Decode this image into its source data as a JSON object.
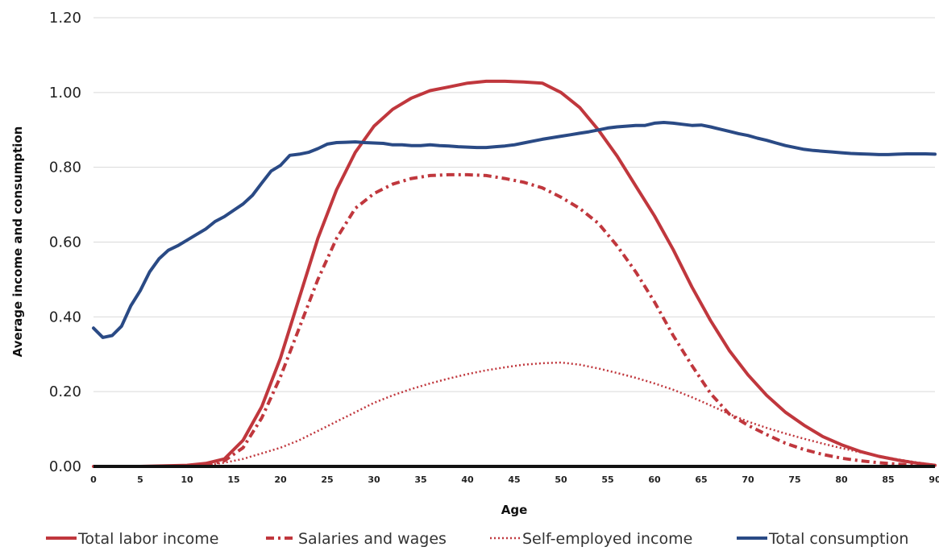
{
  "chart_data": {
    "type": "line",
    "xlabel": "Age",
    "ylabel": "Average income and consumption",
    "xlim": [
      0,
      90
    ],
    "ylim": [
      0,
      1.2
    ],
    "x_ticks": [
      "0",
      "5",
      "10",
      "15",
      "20",
      "25",
      "30",
      "35",
      "40",
      "45",
      "50",
      "55",
      "60",
      "65",
      "70",
      "75",
      "80",
      "85",
      "90"
    ],
    "y_ticks": [
      "0.00",
      "0.20",
      "0.40",
      "0.60",
      "0.80",
      "1.00",
      "1.20"
    ],
    "grid": "horizontal",
    "legend_position": "bottom",
    "series": [
      {
        "name": "Total labor income",
        "color": "#c0373d",
        "style": "solid",
        "points": [
          [
            0,
            0
          ],
          [
            5,
            0
          ],
          [
            10,
            0.003
          ],
          [
            12,
            0.008
          ],
          [
            14,
            0.02
          ],
          [
            16,
            0.07
          ],
          [
            18,
            0.16
          ],
          [
            20,
            0.29
          ],
          [
            22,
            0.45
          ],
          [
            24,
            0.61
          ],
          [
            26,
            0.74
          ],
          [
            28,
            0.84
          ],
          [
            30,
            0.91
          ],
          [
            32,
            0.955
          ],
          [
            34,
            0.985
          ],
          [
            36,
            1.005
          ],
          [
            38,
            1.015
          ],
          [
            40,
            1.025
          ],
          [
            42,
            1.03
          ],
          [
            44,
            1.03
          ],
          [
            46,
            1.028
          ],
          [
            48,
            1.025
          ],
          [
            50,
            1.0
          ],
          [
            52,
            0.96
          ],
          [
            54,
            0.9
          ],
          [
            56,
            0.83
          ],
          [
            58,
            0.75
          ],
          [
            60,
            0.67
          ],
          [
            62,
            0.58
          ],
          [
            64,
            0.48
          ],
          [
            66,
            0.39
          ],
          [
            68,
            0.31
          ],
          [
            70,
            0.245
          ],
          [
            72,
            0.19
          ],
          [
            74,
            0.145
          ],
          [
            76,
            0.11
          ],
          [
            78,
            0.08
          ],
          [
            80,
            0.058
          ],
          [
            82,
            0.04
          ],
          [
            84,
            0.027
          ],
          [
            86,
            0.017
          ],
          [
            88,
            0.009
          ],
          [
            90,
            0.003
          ]
        ]
      },
      {
        "name": "Salaries and wages",
        "color": "#c0373d",
        "style": "dash-dot",
        "points": [
          [
            0,
            0
          ],
          [
            10,
            0
          ],
          [
            12,
            0.003
          ],
          [
            14,
            0.015
          ],
          [
            16,
            0.05
          ],
          [
            18,
            0.13
          ],
          [
            20,
            0.24
          ],
          [
            22,
            0.37
          ],
          [
            24,
            0.5
          ],
          [
            26,
            0.61
          ],
          [
            28,
            0.69
          ],
          [
            30,
            0.73
          ],
          [
            32,
            0.755
          ],
          [
            34,
            0.77
          ],
          [
            36,
            0.778
          ],
          [
            38,
            0.78
          ],
          [
            40,
            0.78
          ],
          [
            42,
            0.778
          ],
          [
            44,
            0.77
          ],
          [
            46,
            0.76
          ],
          [
            48,
            0.745
          ],
          [
            50,
            0.72
          ],
          [
            52,
            0.69
          ],
          [
            54,
            0.65
          ],
          [
            56,
            0.59
          ],
          [
            58,
            0.52
          ],
          [
            60,
            0.44
          ],
          [
            62,
            0.35
          ],
          [
            64,
            0.27
          ],
          [
            66,
            0.195
          ],
          [
            68,
            0.14
          ],
          [
            70,
            0.11
          ],
          [
            72,
            0.085
          ],
          [
            74,
            0.062
          ],
          [
            76,
            0.045
          ],
          [
            78,
            0.032
          ],
          [
            80,
            0.022
          ],
          [
            82,
            0.015
          ],
          [
            84,
            0.01
          ],
          [
            86,
            0.006
          ],
          [
            88,
            0.003
          ],
          [
            90,
            0.001
          ]
        ]
      },
      {
        "name": "Self-employed income",
        "color": "#c0373d",
        "style": "dotted",
        "points": [
          [
            0,
            0
          ],
          [
            10,
            0
          ],
          [
            12,
            0.003
          ],
          [
            14,
            0.01
          ],
          [
            16,
            0.02
          ],
          [
            18,
            0.035
          ],
          [
            20,
            0.05
          ],
          [
            22,
            0.07
          ],
          [
            24,
            0.095
          ],
          [
            26,
            0.12
          ],
          [
            28,
            0.145
          ],
          [
            30,
            0.17
          ],
          [
            32,
            0.19
          ],
          [
            34,
            0.207
          ],
          [
            36,
            0.222
          ],
          [
            38,
            0.235
          ],
          [
            40,
            0.247
          ],
          [
            42,
            0.257
          ],
          [
            44,
            0.265
          ],
          [
            46,
            0.272
          ],
          [
            48,
            0.276
          ],
          [
            50,
            0.278
          ],
          [
            52,
            0.272
          ],
          [
            54,
            0.262
          ],
          [
            56,
            0.25
          ],
          [
            58,
            0.237
          ],
          [
            60,
            0.222
          ],
          [
            62,
            0.205
          ],
          [
            64,
            0.185
          ],
          [
            66,
            0.163
          ],
          [
            68,
            0.14
          ],
          [
            70,
            0.12
          ],
          [
            72,
            0.103
          ],
          [
            74,
            0.088
          ],
          [
            76,
            0.074
          ],
          [
            78,
            0.061
          ],
          [
            80,
            0.049
          ],
          [
            82,
            0.038
          ],
          [
            84,
            0.028
          ],
          [
            86,
            0.019
          ],
          [
            88,
            0.011
          ],
          [
            90,
            0.004
          ]
        ]
      },
      {
        "name": "Total consumption",
        "color": "#2a4a85",
        "style": "solid",
        "points": [
          [
            0,
            0.37
          ],
          [
            1,
            0.345
          ],
          [
            2,
            0.35
          ],
          [
            3,
            0.375
          ],
          [
            4,
            0.43
          ],
          [
            5,
            0.47
          ],
          [
            6,
            0.52
          ],
          [
            7,
            0.555
          ],
          [
            8,
            0.578
          ],
          [
            9,
            0.59
          ],
          [
            10,
            0.605
          ],
          [
            11,
            0.62
          ],
          [
            12,
            0.635
          ],
          [
            13,
            0.655
          ],
          [
            14,
            0.668
          ],
          [
            15,
            0.685
          ],
          [
            16,
            0.702
          ],
          [
            17,
            0.725
          ],
          [
            18,
            0.758
          ],
          [
            19,
            0.79
          ],
          [
            20,
            0.805
          ],
          [
            21,
            0.832
          ],
          [
            22,
            0.835
          ],
          [
            23,
            0.84
          ],
          [
            24,
            0.85
          ],
          [
            25,
            0.862
          ],
          [
            26,
            0.866
          ],
          [
            27,
            0.867
          ],
          [
            28,
            0.868
          ],
          [
            29,
            0.866
          ],
          [
            30,
            0.865
          ],
          [
            31,
            0.864
          ],
          [
            32,
            0.86
          ],
          [
            33,
            0.86
          ],
          [
            34,
            0.858
          ],
          [
            35,
            0.858
          ],
          [
            36,
            0.86
          ],
          [
            37,
            0.858
          ],
          [
            38,
            0.857
          ],
          [
            39,
            0.855
          ],
          [
            40,
            0.854
          ],
          [
            41,
            0.853
          ],
          [
            42,
            0.853
          ],
          [
            43,
            0.855
          ],
          [
            44,
            0.857
          ],
          [
            45,
            0.86
          ],
          [
            46,
            0.865
          ],
          [
            47,
            0.87
          ],
          [
            48,
            0.875
          ],
          [
            49,
            0.879
          ],
          [
            50,
            0.883
          ],
          [
            51,
            0.887
          ],
          [
            52,
            0.891
          ],
          [
            53,
            0.895
          ],
          [
            54,
            0.9
          ],
          [
            55,
            0.905
          ],
          [
            56,
            0.908
          ],
          [
            57,
            0.91
          ],
          [
            58,
            0.912
          ],
          [
            59,
            0.912
          ],
          [
            60,
            0.918
          ],
          [
            61,
            0.92
          ],
          [
            62,
            0.918
          ],
          [
            63,
            0.915
          ],
          [
            64,
            0.912
          ],
          [
            65,
            0.913
          ],
          [
            66,
            0.908
          ],
          [
            67,
            0.902
          ],
          [
            68,
            0.896
          ],
          [
            69,
            0.89
          ],
          [
            70,
            0.885
          ],
          [
            71,
            0.878
          ],
          [
            72,
            0.872
          ],
          [
            73,
            0.865
          ],
          [
            74,
            0.858
          ],
          [
            75,
            0.853
          ],
          [
            76,
            0.848
          ],
          [
            77,
            0.845
          ],
          [
            78,
            0.843
          ],
          [
            79,
            0.841
          ],
          [
            80,
            0.839
          ],
          [
            81,
            0.837
          ],
          [
            82,
            0.836
          ],
          [
            83,
            0.835
          ],
          [
            84,
            0.834
          ],
          [
            85,
            0.834
          ],
          [
            86,
            0.835
          ],
          [
            87,
            0.836
          ],
          [
            88,
            0.836
          ],
          [
            89,
            0.836
          ],
          [
            90,
            0.835
          ]
        ]
      }
    ]
  }
}
